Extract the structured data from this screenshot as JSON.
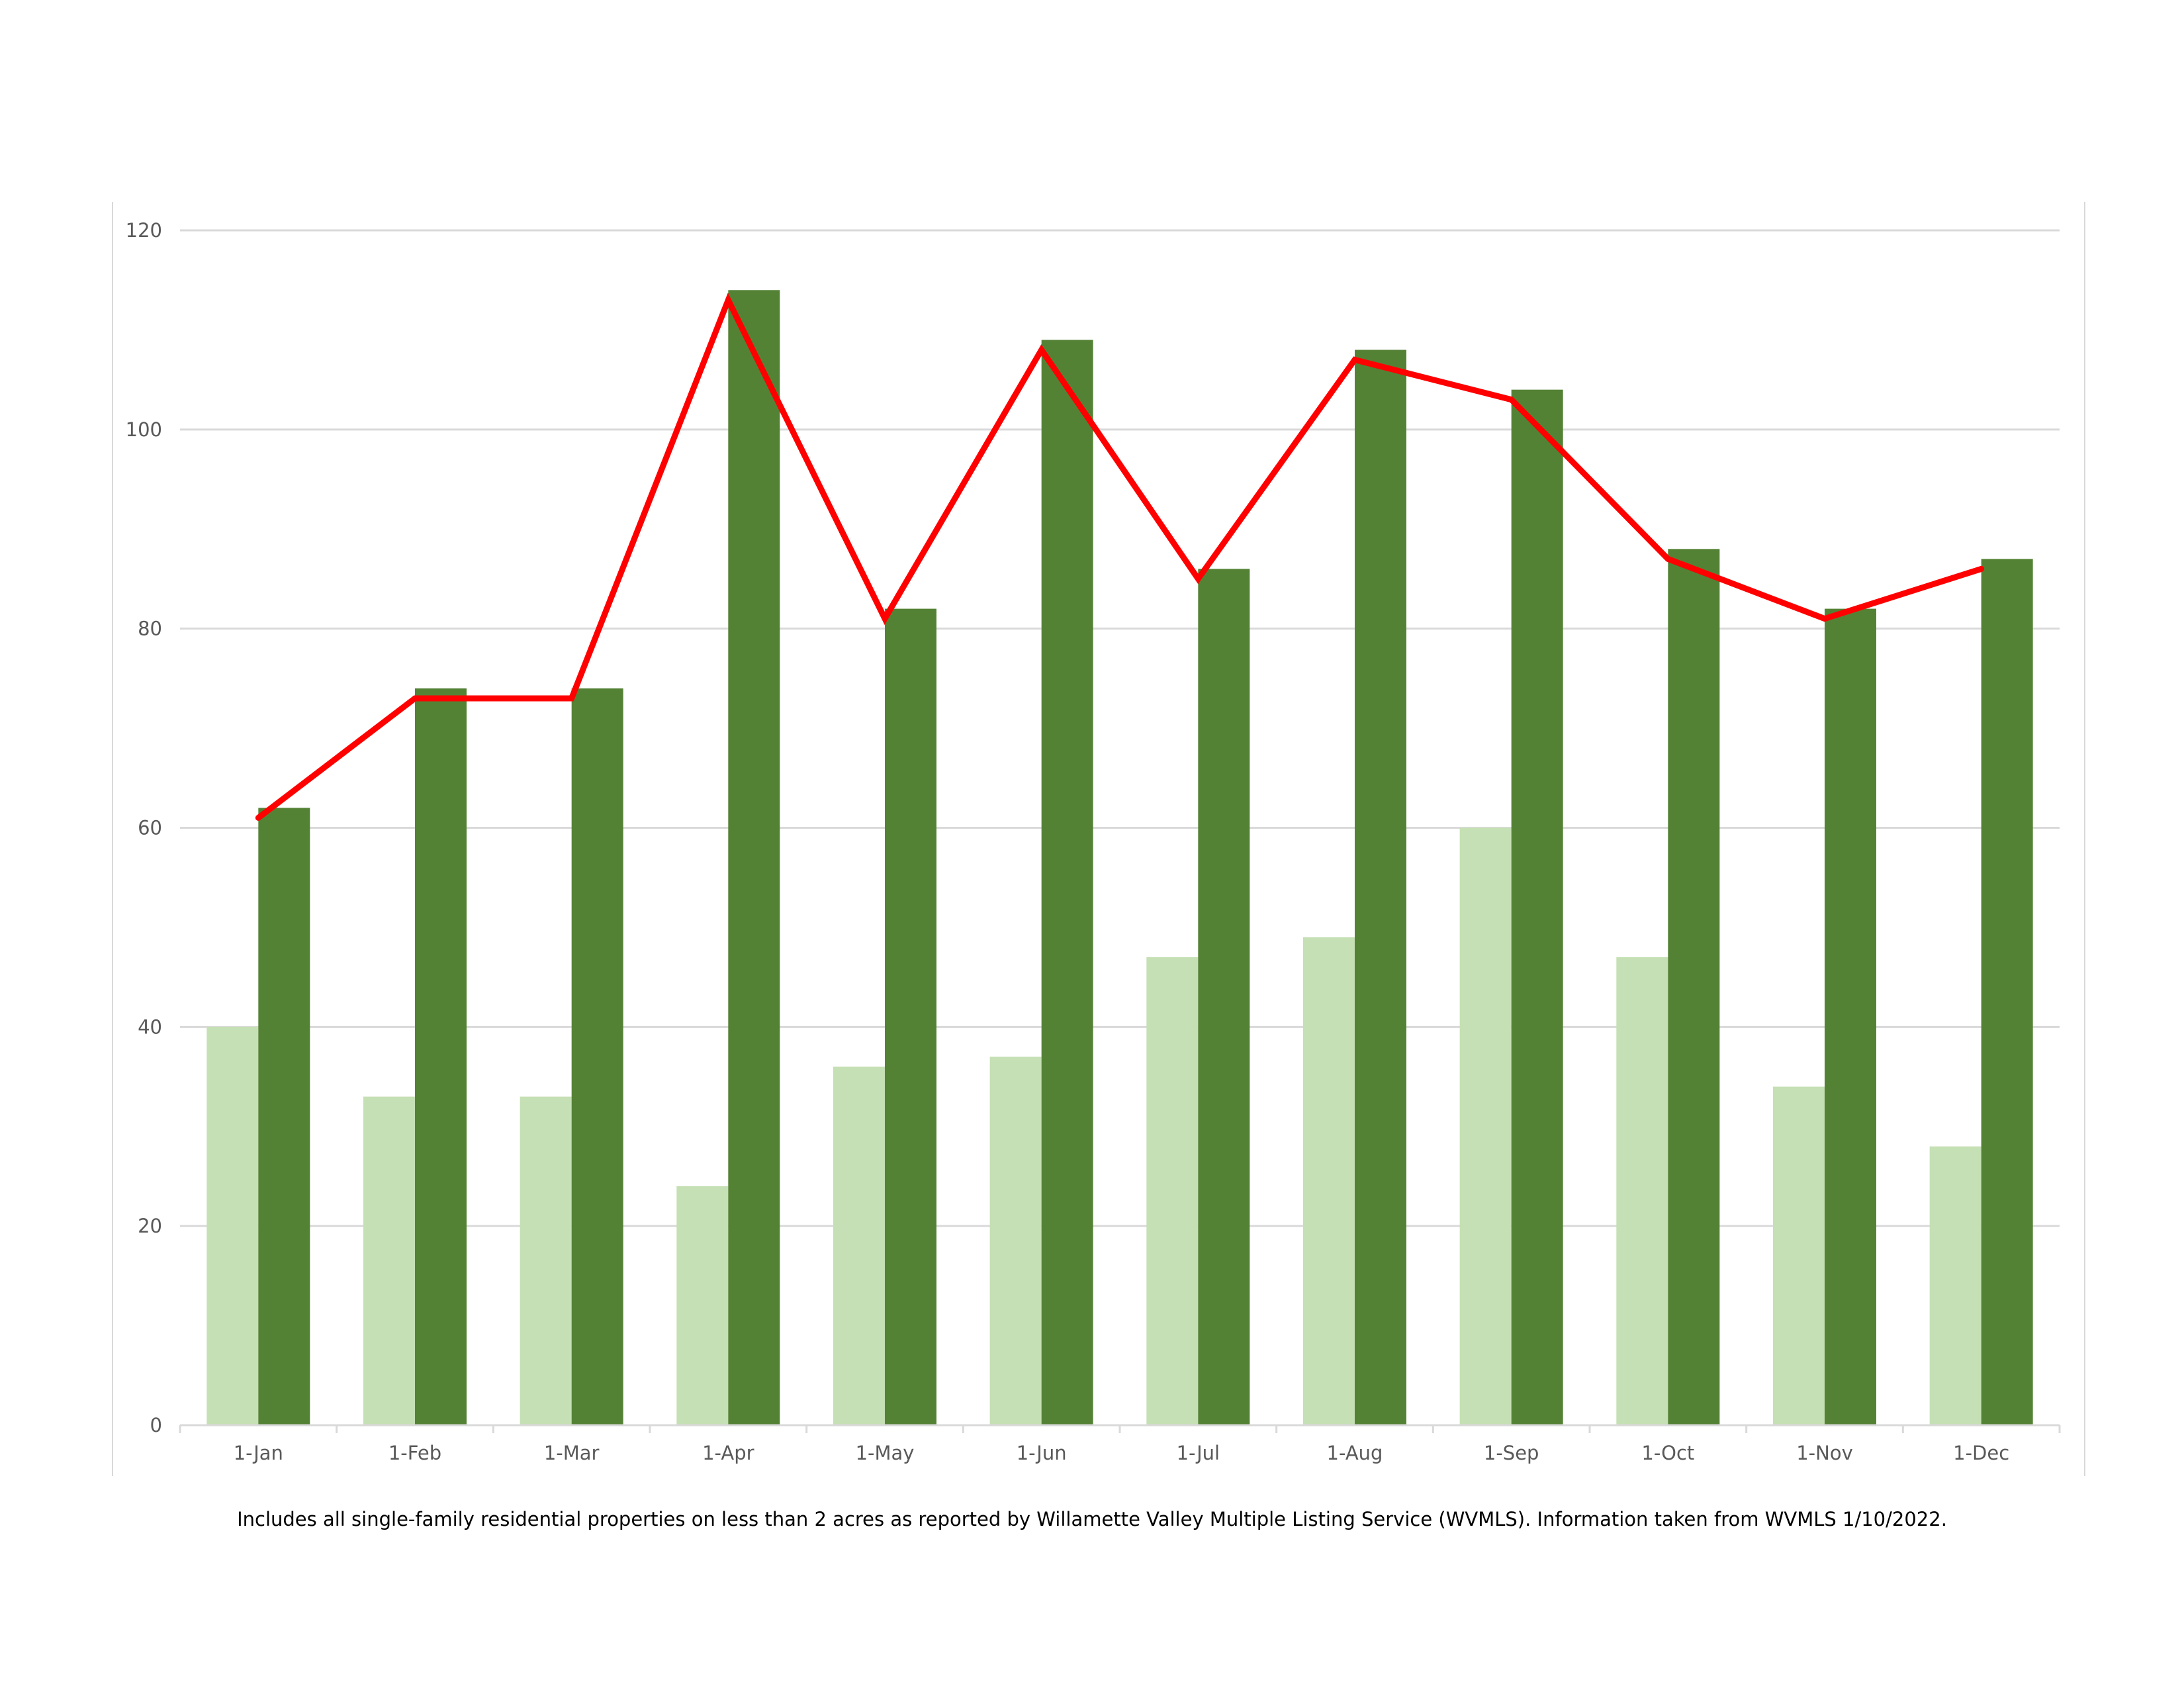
{
  "chart_data": {
    "type": "bar",
    "categories": [
      "1-Jan",
      "1-Feb",
      "1-Mar",
      "1-Apr",
      "1-May",
      "1-Jun",
      "1-Jul",
      "1-Aug",
      "1-Sep",
      "1-Oct",
      "1-Nov",
      "1-Dec"
    ],
    "series": [
      {
        "type": "bar",
        "color": "#c5e0b4",
        "values": [
          40,
          33,
          33,
          24,
          36,
          37,
          47,
          49,
          60,
          47,
          34,
          28
        ]
      },
      {
        "type": "bar",
        "color": "#548235",
        "values": [
          62,
          74,
          74,
          114,
          82,
          109,
          86,
          108,
          104,
          88,
          82,
          87
        ]
      },
      {
        "type": "line",
        "color": "#ff0000",
        "values": [
          61,
          73,
          73,
          113,
          81,
          108,
          85,
          107,
          103,
          87,
          81,
          86
        ]
      }
    ],
    "yticks": [
      "0",
      "20",
      "40",
      "60",
      "80",
      "100",
      "120"
    ],
    "ylim": [
      0,
      120
    ],
    "grid": true,
    "legend": "none"
  },
  "footnote": "Includes all single-family residential properties on less than 2 acres as reported by Willamette Valley Multiple Listing Service (WVMLS). Information taken from WVMLS 1/10/2022."
}
